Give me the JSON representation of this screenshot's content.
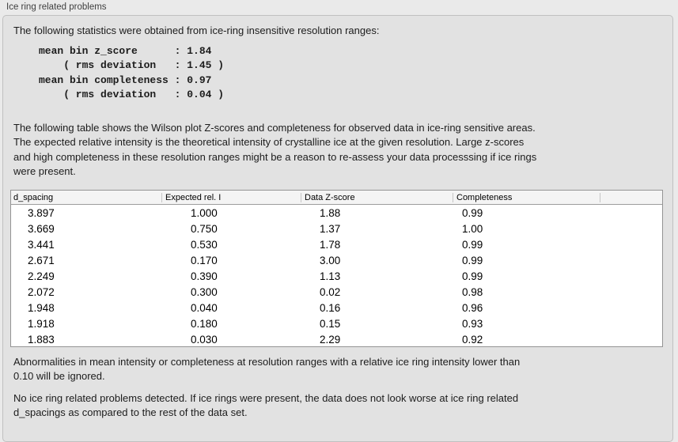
{
  "panel": {
    "title": "Ice ring related problems"
  },
  "intro": {
    "text": "The following statistics were obtained from ice-ring insensitive resolution ranges:"
  },
  "stats_block": {
    "lines": [
      "mean bin z_score      : 1.84",
      "    ( rms deviation   : 1.45 )",
      "mean bin completeness : 0.97",
      "    ( rms deviation   : 0.04 )"
    ]
  },
  "table_description": {
    "lines": [
      "The following table shows the Wilson plot Z-scores and completeness for observed data in ice-ring sensitive areas.",
      "The expected relative intensity is the theoretical intensity of crystalline ice at the given resolution. Large z-scores",
      "and high completeness in these resolution ranges might be a reason to re-assess your data processsing if ice rings",
      "were present."
    ]
  },
  "table": {
    "headers": [
      "d_spacing",
      "Expected rel. I",
      "Data Z-score",
      "Completeness",
      ""
    ],
    "rows": [
      [
        "3.897",
        "1.000",
        "1.88",
        "0.99"
      ],
      [
        "3.669",
        "0.750",
        "1.37",
        "1.00"
      ],
      [
        "3.441",
        "0.530",
        "1.78",
        "0.99"
      ],
      [
        "2.671",
        "0.170",
        "3.00",
        "0.99"
      ],
      [
        "2.249",
        "0.390",
        "1.13",
        "0.99"
      ],
      [
        "2.072",
        "0.300",
        "0.02",
        "0.98"
      ],
      [
        "1.948",
        "0.040",
        "0.16",
        "0.96"
      ],
      [
        "1.918",
        "0.180",
        "0.15",
        "0.93"
      ],
      [
        "1.883",
        "0.030",
        "2.29",
        "0.92"
      ]
    ]
  },
  "ignore_note": {
    "lines": [
      "Abnormalities in mean intensity or completeness at resolution ranges with a relative ice ring intensity lower than",
      "0.10 will be ignored."
    ]
  },
  "conclusion": {
    "lines": [
      "No ice ring related problems detected. If ice rings were present, the data does not look worse at ice ring related",
      "d_spacings as compared to the rest of the data set."
    ]
  },
  "colors": {
    "outer_bg": "#eaeaea",
    "box_bg": "#e2e2e2",
    "box_border": "#c0c0c0",
    "table_bg": "#ffffff",
    "table_border": "#949494",
    "header_bg": "#f4f4f4",
    "header_divider": "#c6c6c6",
    "text": "#1c1c1c"
  }
}
